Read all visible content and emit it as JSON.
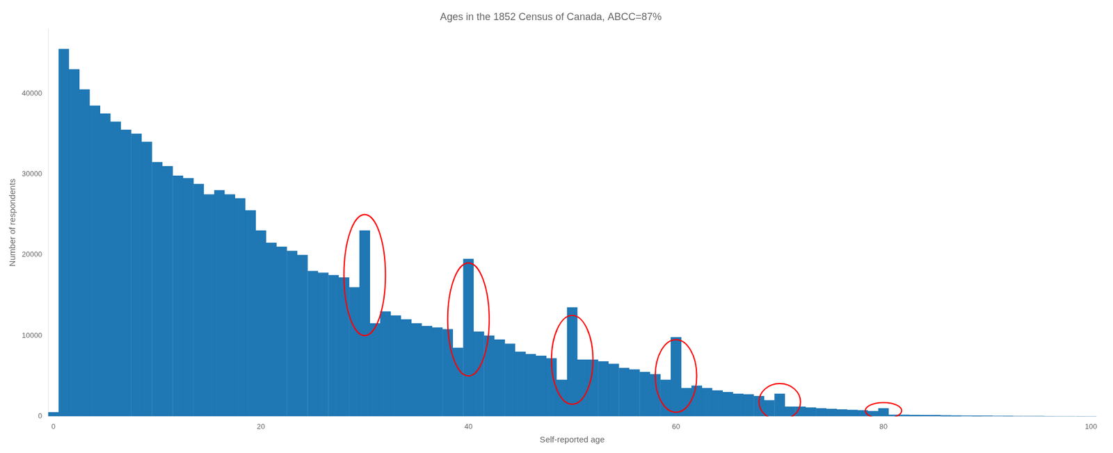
{
  "chart_data": {
    "type": "bar",
    "title": "Ages in the 1852 Census of Canada, ABCC=87%",
    "xlabel": "Self-reported age",
    "ylabel": "Number of respondents",
    "color": "#1f77b4",
    "grid": false,
    "x": [
      0,
      1,
      2,
      3,
      4,
      5,
      6,
      7,
      8,
      9,
      10,
      11,
      12,
      13,
      14,
      15,
      16,
      17,
      18,
      19,
      20,
      21,
      22,
      23,
      24,
      25,
      26,
      27,
      28,
      29,
      30,
      31,
      32,
      33,
      34,
      35,
      36,
      37,
      38,
      39,
      40,
      41,
      42,
      43,
      44,
      45,
      46,
      47,
      48,
      49,
      50,
      51,
      52,
      53,
      54,
      55,
      56,
      57,
      58,
      59,
      60,
      61,
      62,
      63,
      64,
      65,
      66,
      67,
      68,
      69,
      70,
      71,
      72,
      73,
      74,
      75,
      76,
      77,
      78,
      79,
      80,
      81,
      82,
      83,
      84,
      85,
      86,
      87,
      88,
      89,
      90,
      91,
      92,
      93,
      94,
      95,
      96,
      97,
      98,
      99,
      100
    ],
    "values": [
      500,
      45500,
      43000,
      40500,
      38500,
      37500,
      36500,
      35500,
      35000,
      34000,
      31500,
      31000,
      29800,
      29500,
      28800,
      27500,
      28000,
      27500,
      27000,
      25500,
      23000,
      21500,
      21000,
      20500,
      20000,
      18000,
      17800,
      17500,
      17200,
      16000,
      23000,
      11500,
      13000,
      12500,
      12000,
      11500,
      11200,
      11000,
      10800,
      8500,
      19500,
      10500,
      10000,
      9500,
      9000,
      8000,
      7700,
      7500,
      7200,
      4500,
      13500,
      7000,
      7000,
      6800,
      6500,
      6000,
      5800,
      5500,
      5200,
      4500,
      9800,
      3500,
      3800,
      3500,
      3200,
      3000,
      2800,
      2700,
      2500,
      2000,
      2800,
      1200,
      1200,
      1100,
      1000,
      900,
      850,
      800,
      750,
      650,
      1000,
      200,
      200,
      180,
      160,
      150,
      130,
      110,
      100,
      80,
      70,
      60,
      50,
      45,
      40,
      35,
      25,
      20,
      15,
      10,
      5
    ],
    "xlim": [
      -0.5,
      100.5
    ],
    "xticks": [
      0,
      20,
      40,
      60,
      80,
      100
    ],
    "ylim": [
      0,
      48000
    ],
    "yticks": [
      0,
      10000,
      20000,
      30000,
      40000
    ],
    "ellipses": [
      {
        "cx": 30,
        "cy": 17500,
        "width": 4.0,
        "height": 15000,
        "color": "red"
      },
      {
        "cx": 40,
        "cy": 12000,
        "width": 4.0,
        "height": 14000,
        "color": "red"
      },
      {
        "cx": 50,
        "cy": 7000,
        "width": 4.0,
        "height": 11000,
        "color": "red"
      },
      {
        "cx": 60,
        "cy": 5000,
        "width": 4.0,
        "height": 9000,
        "color": "red"
      },
      {
        "cx": 70,
        "cy": 1800,
        "width": 4.0,
        "height": 4500,
        "color": "red"
      },
      {
        "cx": 80,
        "cy": 700,
        "width": 3.5,
        "height": 2000,
        "color": "red"
      }
    ]
  }
}
